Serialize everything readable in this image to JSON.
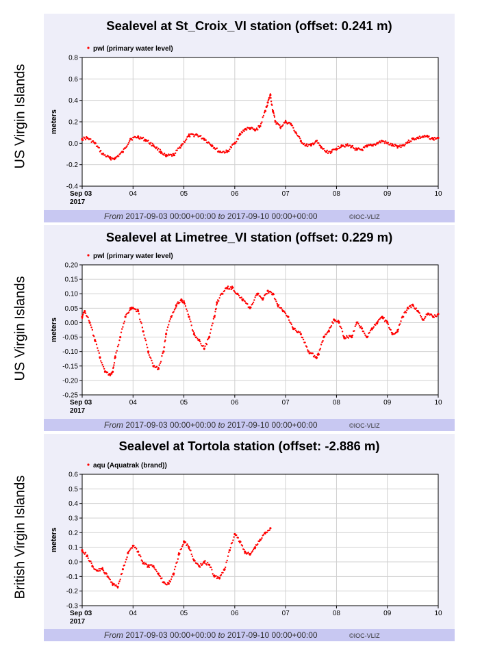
{
  "chart_data": [
    {
      "type": "scatter",
      "side_label": "US Virgin Islands",
      "title": "Sealevel at St_Croix_VI station (offset: 0.241 m)",
      "ylabel": "meters",
      "ylim": [
        -0.4,
        0.8
      ],
      "yticks": [
        "0.8",
        "0.6",
        "0.4",
        "0.2",
        "0.0",
        "-0.2",
        "-0.4"
      ],
      "xlim": [
        0,
        7
      ],
      "xticks": [
        "Sep 03",
        "04",
        "05",
        "06",
        "07",
        "08",
        "09",
        "10"
      ],
      "year_label": "2017",
      "grid": true,
      "legend_position": "top-left",
      "series": [
        {
          "name": "pwl (primary water level)",
          "color": "#ff0000",
          "x": [
            0,
            0.1,
            0.25,
            0.4,
            0.55,
            0.65,
            0.8,
            0.95,
            1.1,
            1.25,
            1.4,
            1.55,
            1.65,
            1.8,
            1.95,
            2.1,
            2.25,
            2.4,
            2.55,
            2.7,
            2.85,
            3.0,
            3.1,
            3.2,
            3.3,
            3.4,
            3.5,
            3.6,
            3.65,
            3.7,
            3.75,
            3.8,
            3.9,
            4.0,
            4.1,
            4.2,
            4.3,
            4.4,
            4.5,
            4.6,
            4.7,
            4.8,
            4.9,
            5.0,
            5.1,
            5.2,
            5.3,
            5.4,
            5.5,
            5.6,
            5.7,
            5.8,
            5.9,
            6.0,
            6.1,
            6.2,
            6.3,
            6.4,
            6.5,
            6.6,
            6.7,
            6.8,
            6.9,
            7.0
          ],
          "y": [
            0.04,
            0.05,
            0.0,
            -0.1,
            -0.14,
            -0.14,
            -0.08,
            0.04,
            0.06,
            0.03,
            -0.02,
            -0.08,
            -0.12,
            -0.11,
            -0.02,
            0.07,
            0.08,
            0.04,
            -0.02,
            -0.08,
            -0.08,
            0.0,
            0.08,
            0.13,
            0.14,
            0.12,
            0.16,
            0.3,
            0.38,
            0.45,
            0.3,
            0.2,
            0.15,
            0.2,
            0.18,
            0.1,
            0.02,
            -0.02,
            -0.02,
            0.02,
            -0.04,
            -0.08,
            -0.08,
            -0.05,
            -0.02,
            -0.02,
            -0.03,
            -0.06,
            -0.06,
            -0.03,
            -0.02,
            0.0,
            0.02,
            0.0,
            -0.02,
            -0.03,
            -0.02,
            0.01,
            0.04,
            0.05,
            0.06,
            0.06,
            0.04,
            0.05
          ]
        }
      ],
      "footer_from": "From",
      "footer_start": "2017-09-03 00:00+00:00",
      "footer_to": "to",
      "footer_end": "2017-09-10 00:00+00:00",
      "credit": "©IOC-VLIZ"
    },
    {
      "type": "scatter",
      "side_label": "US Virgin Islands",
      "title": "Sealevel at Limetree_VI station (offset: 0.229 m)",
      "ylabel": "meters",
      "ylim": [
        -0.25,
        0.2
      ],
      "yticks": [
        "0.20",
        "0.15",
        "0.10",
        "0.05",
        "0.00",
        "-0.05",
        "-0.10",
        "-0.15",
        "-0.20",
        "-0.25"
      ],
      "xlim": [
        0,
        7
      ],
      "xticks": [
        "Sep 03",
        "04",
        "05",
        "06",
        "07",
        "08",
        "09",
        "10"
      ],
      "year_label": "2017",
      "grid": true,
      "legend_position": "top-left",
      "series": [
        {
          "name": "pwl (primary water level)",
          "color": "#ff0000",
          "x": [
            0,
            0.05,
            0.15,
            0.25,
            0.35,
            0.45,
            0.55,
            0.6,
            0.65,
            0.75,
            0.85,
            0.95,
            1.0,
            1.1,
            1.2,
            1.3,
            1.4,
            1.5,
            1.6,
            1.65,
            1.75,
            1.85,
            1.95,
            2.0,
            2.1,
            2.2,
            2.3,
            2.4,
            2.5,
            2.6,
            2.65,
            2.75,
            2.85,
            2.95,
            3.05,
            3.15,
            3.3,
            3.45,
            3.55,
            3.65,
            3.75,
            3.85,
            3.95,
            4.05,
            4.15,
            4.3,
            4.45,
            4.6,
            4.65,
            4.75,
            4.85,
            4.95,
            5.05,
            5.15,
            5.3,
            5.4,
            5.5,
            5.6,
            5.7,
            5.8,
            5.9,
            6.0,
            6.1,
            6.2,
            6.3,
            6.4,
            6.5,
            6.6,
            6.7,
            6.8,
            6.9,
            7.0
          ],
          "y": [
            0.02,
            0.04,
            0.0,
            -0.06,
            -0.12,
            -0.17,
            -0.18,
            -0.17,
            -0.12,
            -0.05,
            0.02,
            0.05,
            0.05,
            0.04,
            -0.03,
            -0.1,
            -0.15,
            -0.16,
            -0.1,
            -0.04,
            0.02,
            0.06,
            0.08,
            0.07,
            0.02,
            -0.04,
            -0.06,
            -0.09,
            -0.05,
            0.02,
            0.07,
            0.1,
            0.12,
            0.12,
            0.1,
            0.08,
            0.05,
            0.1,
            0.08,
            0.11,
            0.1,
            0.06,
            0.04,
            0.02,
            -0.02,
            -0.04,
            -0.1,
            -0.12,
            -0.11,
            -0.05,
            -0.03,
            0.01,
            0.0,
            -0.05,
            -0.05,
            0.0,
            -0.02,
            -0.05,
            -0.02,
            0.0,
            0.02,
            0.0,
            -0.04,
            -0.03,
            0.02,
            0.05,
            0.06,
            0.04,
            0.01,
            0.03,
            0.02,
            0.03
          ]
        }
      ],
      "footer_from": "From",
      "footer_start": "2017-09-03 00:00+00:00",
      "footer_to": "to",
      "footer_end": "2017-09-10 00:00+00:00",
      "credit": "©IOC-VLIZ"
    },
    {
      "type": "scatter",
      "side_label": "British Virgin Islands",
      "title": "Sealevel at Tortola station (offset: -2.886 m)",
      "ylabel": "meters",
      "ylim": [
        -0.3,
        0.6
      ],
      "yticks": [
        "0.6",
        "0.5",
        "0.4",
        "0.3",
        "0.2",
        "0.1",
        "0.0",
        "-0.1",
        "-0.2",
        "-0.3"
      ],
      "xlim": [
        0,
        7
      ],
      "xticks": [
        "Sep 03",
        "04",
        "05",
        "06",
        "07",
        "08",
        "09",
        "10"
      ],
      "year_label": "2017",
      "grid": true,
      "legend_position": "top-left",
      "series": [
        {
          "name": "aqu (Aquatrak (brand))",
          "color": "#ff0000",
          "x": [
            0,
            0.1,
            0.2,
            0.3,
            0.4,
            0.5,
            0.6,
            0.7,
            0.8,
            0.9,
            1.0,
            1.1,
            1.2,
            1.3,
            1.4,
            1.5,
            1.6,
            1.7,
            1.8,
            1.9,
            2.0,
            2.1,
            2.2,
            2.3,
            2.4,
            2.5,
            2.6,
            2.7,
            2.8,
            2.9,
            3.0,
            3.1,
            3.2,
            3.3,
            3.4,
            3.5,
            3.6,
            3.7
          ],
          "y": [
            0.08,
            0.04,
            -0.03,
            -0.06,
            -0.05,
            -0.1,
            -0.15,
            -0.17,
            -0.05,
            0.06,
            0.11,
            0.07,
            -0.01,
            -0.03,
            -0.03,
            -0.08,
            -0.14,
            -0.15,
            -0.08,
            0.05,
            0.14,
            0.1,
            0.01,
            -0.03,
            0.0,
            -0.02,
            -0.1,
            -0.11,
            -0.05,
            0.08,
            0.19,
            0.14,
            0.07,
            0.05,
            0.1,
            0.15,
            0.2,
            0.23
          ]
        }
      ],
      "footer_from": "From",
      "footer_start": "2017-09-03 00:00+00:00",
      "footer_to": "to",
      "footer_end": "2017-09-10 00:00+00:00",
      "credit": "©IOC-VLIZ"
    }
  ]
}
